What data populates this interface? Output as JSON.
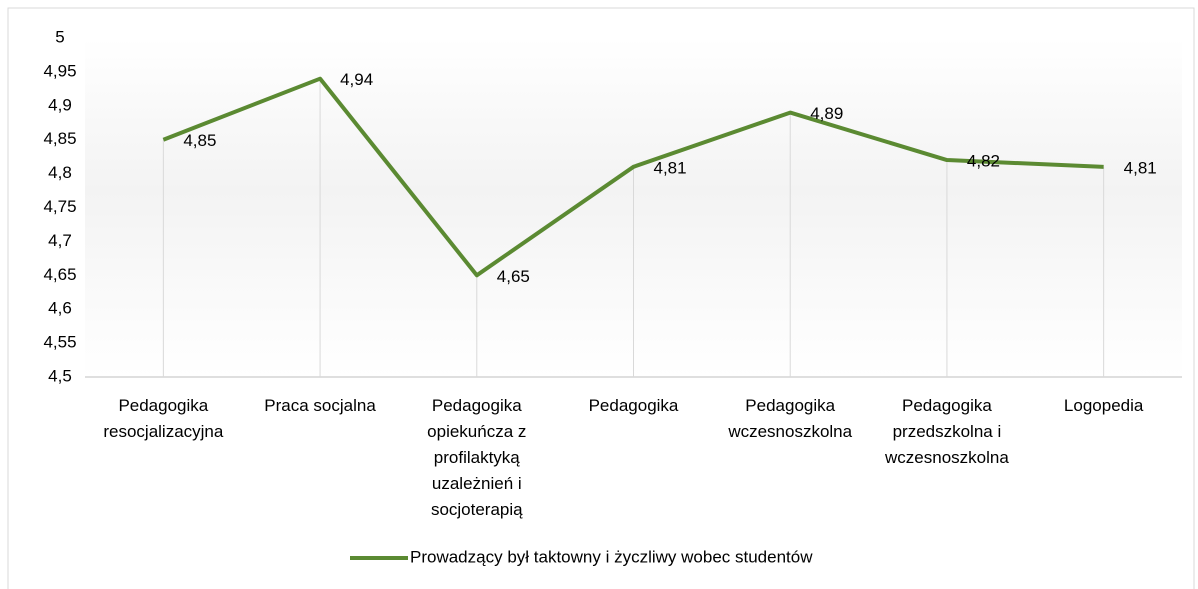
{
  "chart_data": {
    "type": "line",
    "categories": [
      "Pedagogika resocjalizacyjna",
      "Praca socjalna",
      "Pedagogika opiekuńcza z profilaktyką uzależnień i socjoterapią",
      "Pedagogika",
      "Pedagogika wczesnoszkolna",
      "Pedagogika przedszkolna i wczesnoszkolna",
      "Logopedia"
    ],
    "series": [
      {
        "name": "Prowadzący był taktowny i życzliwy wobec studentów",
        "color": "#5b8a32",
        "values": [
          4.85,
          4.94,
          4.65,
          4.81,
          4.89,
          4.82,
          4.81
        ],
        "value_labels": [
          "4,85",
          "4,94",
          "4,65",
          "4,81",
          "4,89",
          "4,82",
          "4,81"
        ]
      }
    ],
    "ylim": [
      4.5,
      5
    ],
    "yticks": [
      {
        "value": 4.5,
        "label": "4,5"
      },
      {
        "value": 4.55,
        "label": "4,55"
      },
      {
        "value": 4.6,
        "label": "4,6"
      },
      {
        "value": 4.65,
        "label": "4,65"
      },
      {
        "value": 4.7,
        "label": "4,7"
      },
      {
        "value": 4.75,
        "label": "4,75"
      },
      {
        "value": 4.8,
        "label": "4,8"
      },
      {
        "value": 4.85,
        "label": "4,85"
      },
      {
        "value": 4.9,
        "label": "4,9"
      },
      {
        "value": 4.95,
        "label": "4,95"
      },
      5
    ],
    "grid": false,
    "legend": "bottom"
  }
}
